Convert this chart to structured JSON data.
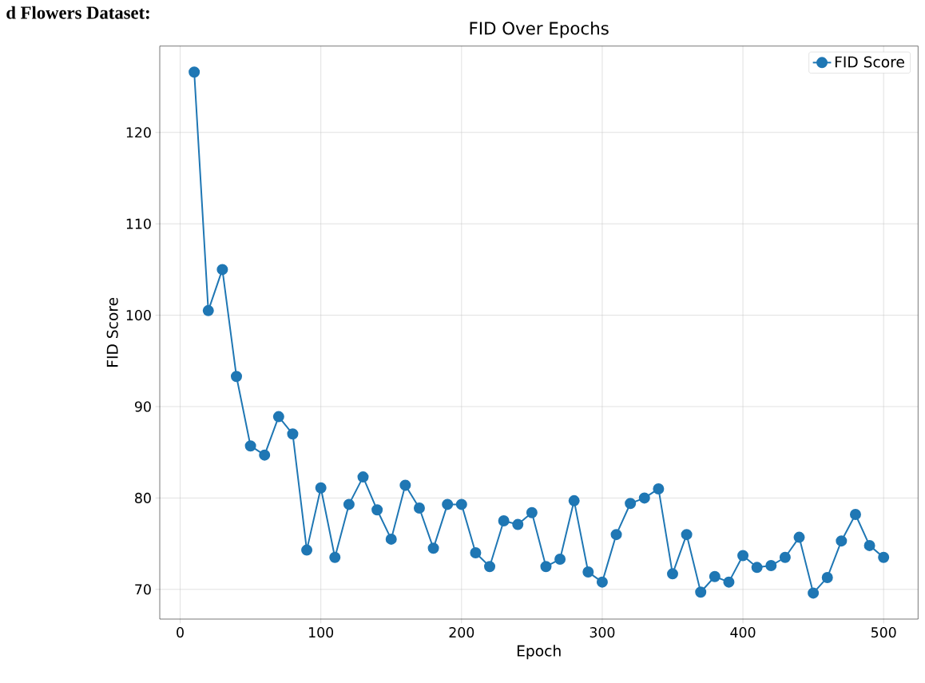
{
  "chart_data": {
    "type": "line",
    "title": "FID Over Epochs",
    "xlabel": "Epoch",
    "ylabel": "FID Score",
    "annotations": [
      "d Flowers Dataset:"
    ],
    "x": [
      10,
      20,
      30,
      40,
      50,
      60,
      70,
      80,
      90,
      100,
      110,
      120,
      130,
      140,
      150,
      160,
      170,
      180,
      190,
      200,
      210,
      220,
      230,
      240,
      250,
      260,
      270,
      280,
      290,
      300,
      310,
      320,
      330,
      340,
      350,
      360,
      370,
      380,
      390,
      400,
      410,
      420,
      430,
      440,
      450,
      460,
      470,
      480,
      490,
      500
    ],
    "series": [
      {
        "name": "FID Score",
        "color": "#1f77b4",
        "values": [
          126.6,
          100.5,
          105.0,
          93.3,
          85.7,
          84.7,
          88.9,
          87.0,
          74.3,
          81.1,
          73.5,
          79.3,
          82.3,
          78.7,
          75.5,
          81.4,
          78.9,
          74.5,
          79.3,
          79.3,
          74.0,
          72.5,
          77.5,
          77.1,
          78.4,
          72.5,
          73.3,
          79.7,
          71.9,
          70.8,
          76.0,
          79.4,
          80.0,
          81.0,
          71.7,
          76.0,
          69.7,
          71.4,
          70.8,
          73.7,
          72.4,
          72.6,
          73.5,
          75.7,
          69.6,
          71.3,
          75.3,
          78.2,
          74.8,
          73.5
        ]
      }
    ],
    "xlim": [
      -14.5,
      524.5
    ],
    "ylim": [
      66.75,
      129.45
    ],
    "xticks": [
      0,
      100,
      200,
      300,
      400,
      500
    ],
    "yticks": [
      70,
      80,
      90,
      100,
      110,
      120
    ],
    "grid": true,
    "legend": "top right",
    "marker": "circle",
    "line_style": "solid"
  }
}
